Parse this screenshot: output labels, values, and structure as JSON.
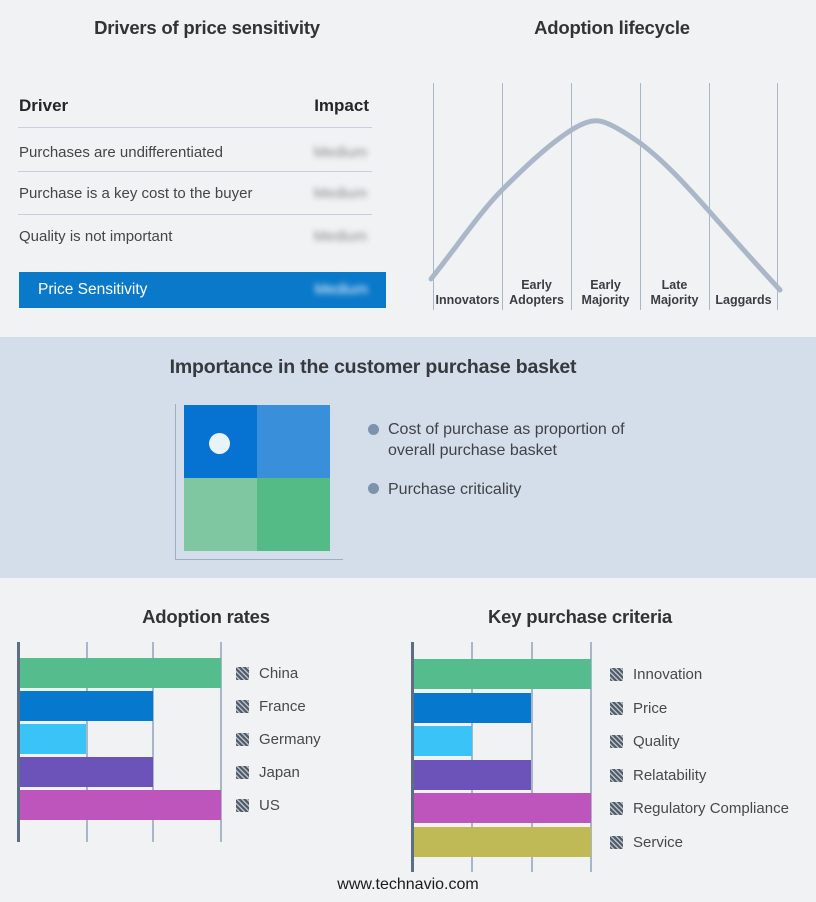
{
  "sections": {
    "basket": {
      "title": "Importance in the customer purchase basket",
      "bullets": [
        "Cost of purchase as proportion of overall purchase basket",
        "Purchase criticality"
      ],
      "quadrant_colors": {
        "top_left": "#0673d2",
        "top_right": "#398fd9",
        "bottom_left": "#7fc7a1",
        "bottom_right": "#54bb86"
      },
      "marker_color": "#e9f3fa"
    }
  },
  "footer": {
    "url": "www.technavio.com"
  },
  "chart_data": [
    {
      "type": "table",
      "title": "Drivers of price sensitivity",
      "columns": [
        "Driver",
        "Impact"
      ],
      "rows": [
        [
          "Purchases are undifferentiated",
          "Medium"
        ],
        [
          "Purchase is a key cost to the buyer",
          "Medium"
        ],
        [
          "Quality is not important",
          "Medium"
        ]
      ],
      "highlight_row": [
        "Price Sensitivity",
        "Medium"
      ],
      "highlight_color": "#0b79ca",
      "impact_values_blurred": true
    },
    {
      "type": "line",
      "title": "Adoption lifecycle",
      "categories": [
        "Innovators",
        "Early Adopters",
        "Early Majority",
        "Late Majority",
        "Laggards"
      ],
      "shape": "bell curve rising from Innovators, peaking in Early Majority, falling to Laggards",
      "curve_color": "#aab7c9",
      "grid": "vertical stage dividers, no y axis"
    },
    {
      "type": "bar",
      "title": "Adoption rates",
      "orientation": "horizontal",
      "categories": [
        "China",
        "France",
        "Germany",
        "Japan",
        "US"
      ],
      "values": [
        1.0,
        0.66,
        0.33,
        0.66,
        1.0
      ],
      "colors": [
        "#55bd8d",
        "#0678cd",
        "#3ac3f7",
        "#6b53ba",
        "#be55bd"
      ],
      "xlim": [
        0,
        1
      ],
      "x_ticks_labeled": false,
      "grid": "3 vertical gridlines",
      "legend_position": "right"
    },
    {
      "type": "bar",
      "title": "Key purchase criteria",
      "orientation": "horizontal",
      "categories": [
        "Innovation",
        "Price",
        "Quality",
        "Relatability",
        "Regulatory Compliance",
        "Service"
      ],
      "values": [
        1.0,
        0.66,
        0.33,
        0.66,
        1.0,
        1.0
      ],
      "colors": [
        "#55bd8d",
        "#0678cd",
        "#3ac3f7",
        "#6b53ba",
        "#be55bd",
        "#bfba55"
      ],
      "xlim": [
        0,
        1
      ],
      "x_ticks_labeled": false,
      "grid": "3 vertical gridlines",
      "legend_position": "right"
    }
  ]
}
